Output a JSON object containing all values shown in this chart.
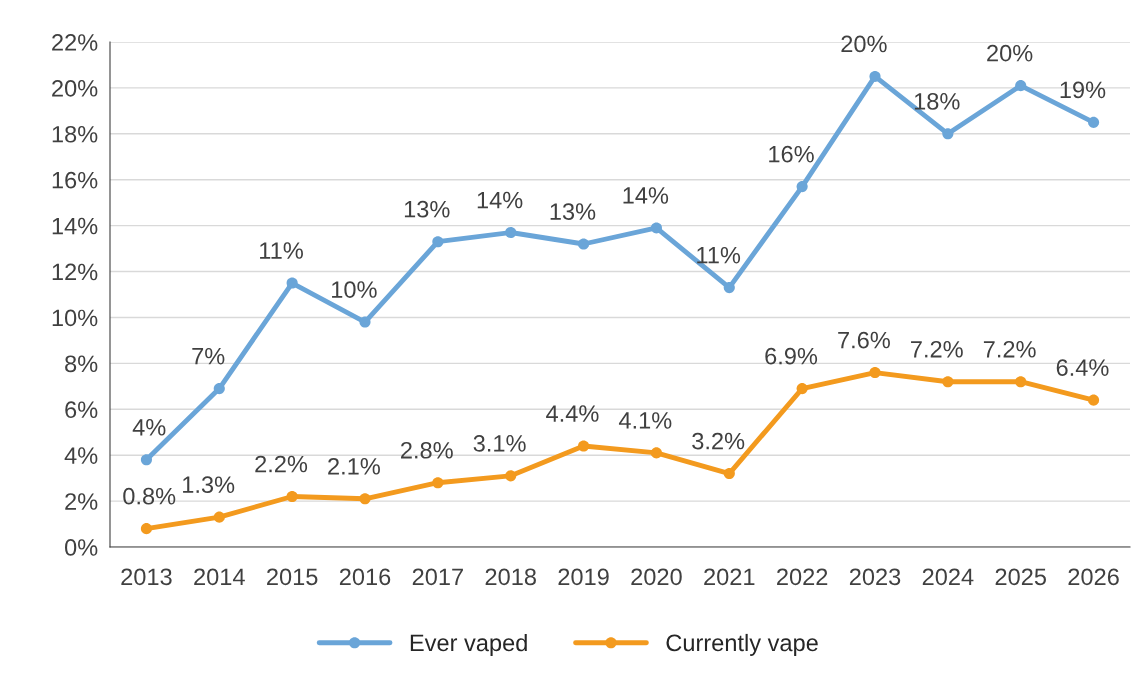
{
  "chart_data": {
    "type": "line",
    "categories": [
      "2013",
      "2014",
      "2015",
      "2016",
      "2017",
      "2018",
      "2019",
      "2020",
      "2021",
      "2022",
      "2023",
      "2024",
      "2025",
      "2026"
    ],
    "series": [
      {
        "name": "Ever vaped",
        "color": "#6aa5d8",
        "values": [
          3.8,
          6.9,
          11.5,
          9.8,
          13.3,
          13.7,
          13.2,
          13.9,
          11.3,
          15.7,
          20.5,
          18.0,
          20.1,
          18.5
        ],
        "value_labels": [
          "4%",
          "7%",
          "11%",
          "10%",
          "13%",
          "14%",
          "13%",
          "14%",
          "11%",
          "16%",
          "20%",
          "18%",
          "20%",
          "19%"
        ]
      },
      {
        "name": "Currently vape",
        "color": "#f39a1e",
        "values": [
          0.8,
          1.3,
          2.2,
          2.1,
          2.8,
          3.1,
          4.4,
          4.1,
          3.2,
          6.9,
          7.6,
          7.2,
          7.2,
          6.4
        ],
        "value_labels": [
          "0.8%",
          "1.3%",
          "2.2%",
          "2.1%",
          "2.8%",
          "3.1%",
          "4.4%",
          "4.1%",
          "3.2%",
          "6.9%",
          "7.6%",
          "7.2%",
          "7.2%",
          "6.4%"
        ]
      }
    ],
    "ylim": [
      0,
      22
    ],
    "yticks": [
      {
        "value": 0,
        "label": "0%"
      },
      {
        "value": 2,
        "label": "2%"
      },
      {
        "value": 4,
        "label": "4%"
      },
      {
        "value": 6,
        "label": "6%"
      },
      {
        "value": 8,
        "label": "8%"
      },
      {
        "value": 10,
        "label": "10%"
      },
      {
        "value": 12,
        "label": "12%"
      },
      {
        "value": 14,
        "label": "14%"
      },
      {
        "value": 16,
        "label": "16%"
      },
      {
        "value": 18,
        "label": "18%"
      },
      {
        "value": 20,
        "label": "20%"
      },
      {
        "value": 22,
        "label": "22%"
      }
    ],
    "grid": "y",
    "legend": "bottom",
    "marker": "circle",
    "line_style": "solid"
  }
}
